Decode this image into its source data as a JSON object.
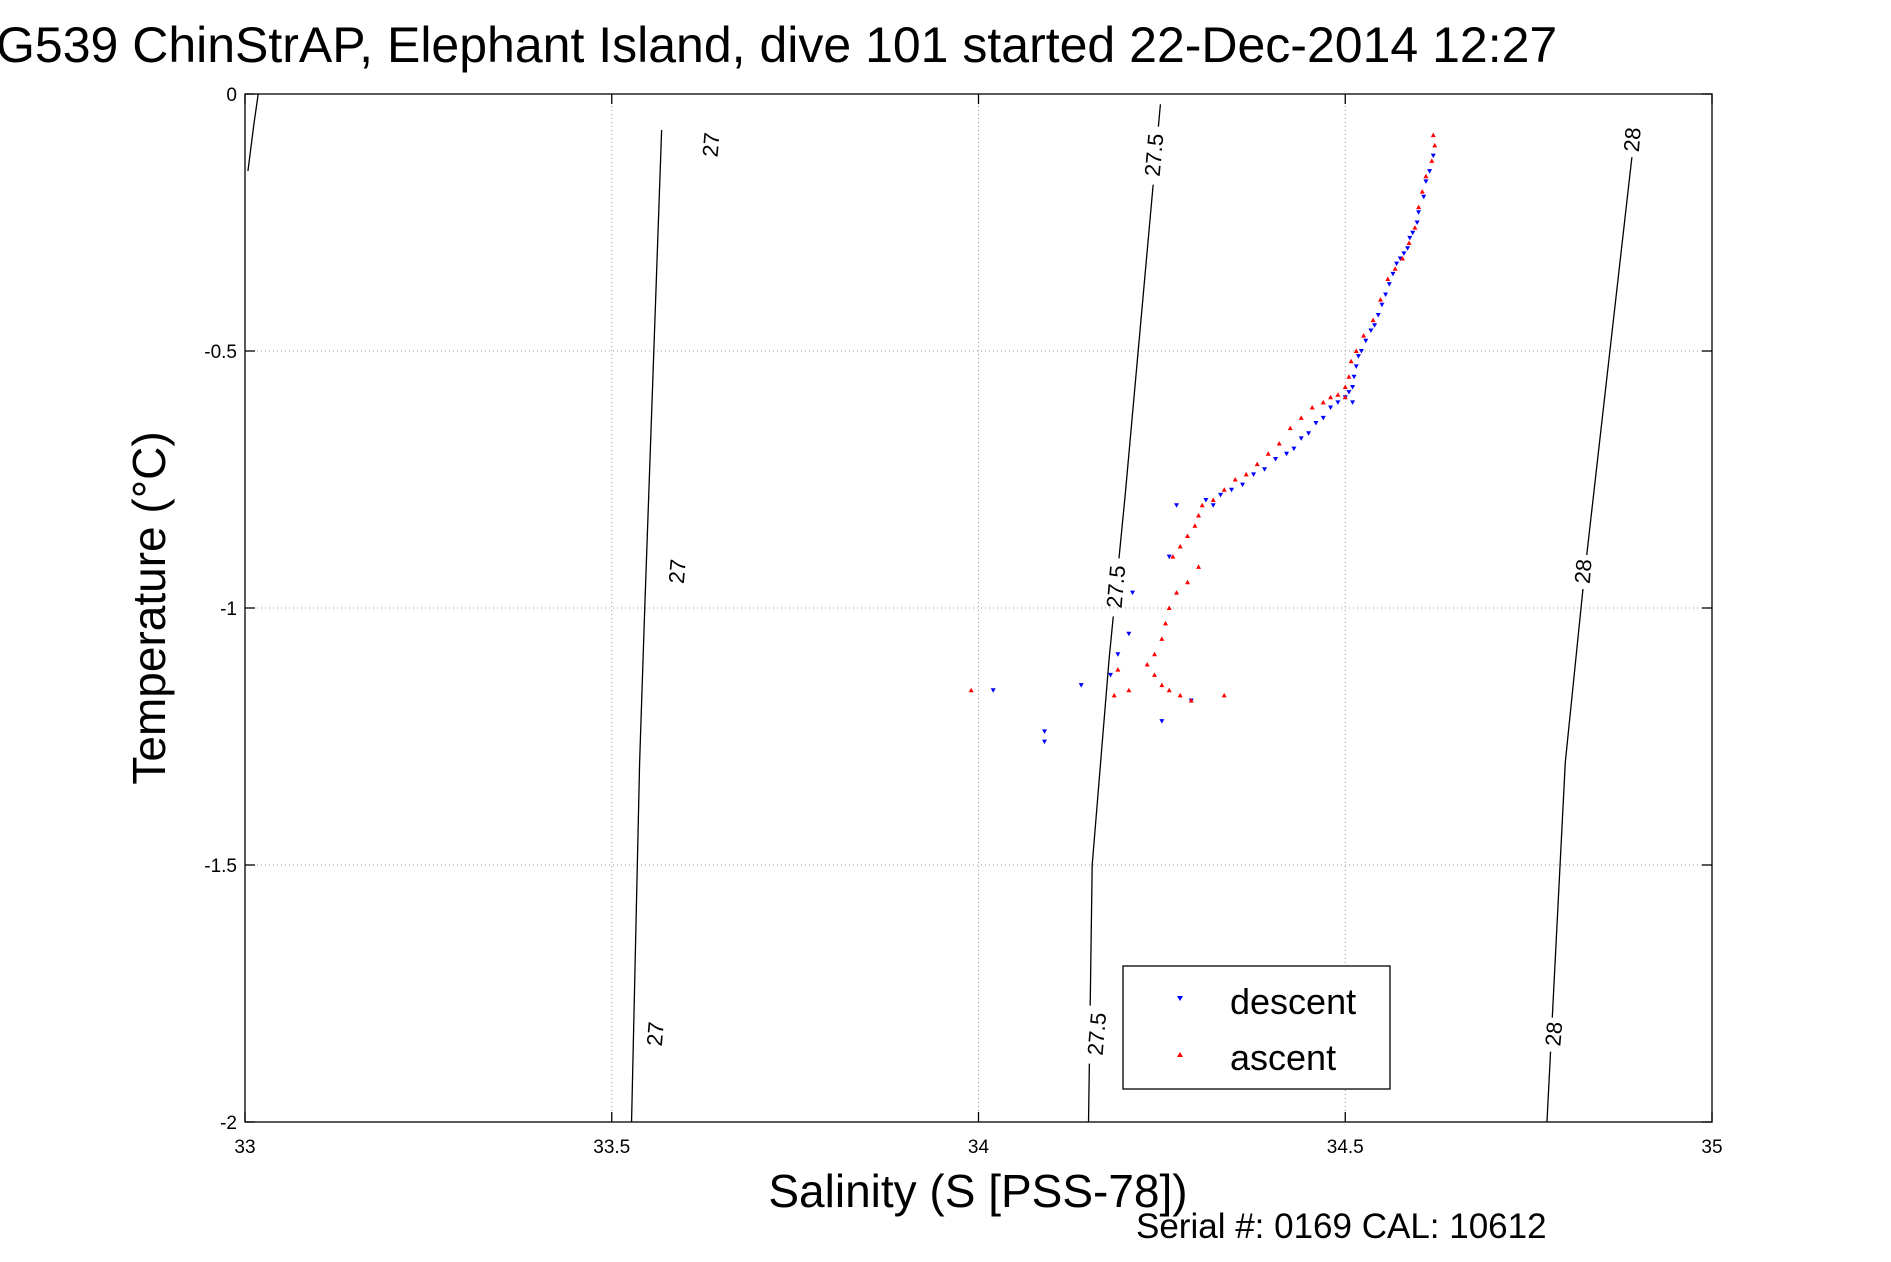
{
  "title": "G539 ChinStrAP, Elephant Island, dive 101 started 22-Dec-2014 12:27",
  "serial_note": "Serial #: 0169 CAL: 10612",
  "colors": {
    "descent": "#0000ff",
    "ascent": "#ff0000",
    "axes": "#000000",
    "grid": "#9a9a9a"
  },
  "chart_data": {
    "type": "scatter",
    "xlabel": "Salinity (S [PSS-78])",
    "ylabel": "Temperature (°C)",
    "xlim": [
      33,
      35
    ],
    "ylim": [
      -2,
      0
    ],
    "xticks": [
      33,
      33.5,
      34,
      34.5,
      35
    ],
    "xtick_labels": [
      "33",
      "33.5",
      "34",
      "34.5",
      "35"
    ],
    "yticks": [
      0,
      -0.5,
      -1,
      -1.5,
      -2
    ],
    "ytick_labels": [
      "0",
      "-0.5",
      "-1",
      "-1.5",
      "-2"
    ],
    "grid": true,
    "legend": {
      "position": "bottom-center",
      "entries": [
        "descent",
        "ascent"
      ]
    },
    "density_contours": [
      {
        "label": "27",
        "line": [
          [
            33.568,
            -0.07
          ],
          [
            33.545,
            -1.0
          ],
          [
            33.538,
            -1.3
          ],
          [
            33.527,
            -2.0
          ]
        ],
        "label_positions": [
          [
            33.636,
            -0.1
          ],
          [
            33.59,
            -0.93
          ],
          [
            33.56,
            -1.83
          ]
        ]
      },
      {
        "label": "27.5",
        "line": [
          [
            34.248,
            -0.02
          ],
          [
            34.2,
            -0.78
          ],
          [
            34.178,
            -1.1
          ],
          [
            34.155,
            -1.5
          ],
          [
            34.15,
            -2.0
          ]
        ],
        "label_positions": [
          [
            34.24,
            -0.12
          ],
          [
            34.188,
            -0.96
          ],
          [
            34.162,
            -1.83
          ]
        ]
      },
      {
        "label": "28",
        "line": [
          [
            34.895,
            -0.07
          ],
          [
            34.825,
            -0.95
          ],
          [
            34.8,
            -1.3
          ],
          [
            34.775,
            -2.0
          ]
        ],
        "label_positions": [
          [
            34.892,
            -0.09
          ],
          [
            34.825,
            -0.93
          ],
          [
            34.785,
            -1.83
          ]
        ]
      },
      {
        "label": "",
        "line": [
          [
            33.018,
            0.0
          ],
          [
            33.012,
            -0.06
          ],
          [
            33.004,
            -0.15
          ]
        ],
        "label_positions": []
      }
    ],
    "series": [
      {
        "name": "descent",
        "marker": "triangle-down",
        "points": [
          [
            34.62,
            -0.12
          ],
          [
            34.615,
            -0.15
          ],
          [
            34.61,
            -0.17
          ],
          [
            34.607,
            -0.2
          ],
          [
            34.6,
            -0.23
          ],
          [
            34.598,
            -0.25
          ],
          [
            34.592,
            -0.27
          ],
          [
            34.588,
            -0.28
          ],
          [
            34.585,
            -0.3
          ],
          [
            34.58,
            -0.31
          ],
          [
            34.575,
            -0.32
          ],
          [
            34.57,
            -0.33
          ],
          [
            34.565,
            -0.35
          ],
          [
            34.56,
            -0.37
          ],
          [
            34.555,
            -0.39
          ],
          [
            34.55,
            -0.41
          ],
          [
            34.545,
            -0.43
          ],
          [
            34.54,
            -0.45
          ],
          [
            34.535,
            -0.46
          ],
          [
            34.528,
            -0.48
          ],
          [
            34.522,
            -0.5
          ],
          [
            34.518,
            -0.51
          ],
          [
            34.515,
            -0.53
          ],
          [
            34.512,
            -0.55
          ],
          [
            34.51,
            -0.57
          ],
          [
            34.505,
            -0.58
          ],
          [
            34.51,
            -0.6
          ],
          [
            34.5,
            -0.59
          ],
          [
            34.49,
            -0.6
          ],
          [
            34.48,
            -0.61
          ],
          [
            34.47,
            -0.63
          ],
          [
            34.46,
            -0.64
          ],
          [
            34.45,
            -0.66
          ],
          [
            34.44,
            -0.67
          ],
          [
            34.43,
            -0.69
          ],
          [
            34.42,
            -0.7
          ],
          [
            34.405,
            -0.71
          ],
          [
            34.39,
            -0.73
          ],
          [
            34.375,
            -0.74
          ],
          [
            34.36,
            -0.76
          ],
          [
            34.345,
            -0.77
          ],
          [
            34.33,
            -0.78
          ],
          [
            34.31,
            -0.79
          ],
          [
            34.32,
            -0.8
          ],
          [
            34.27,
            -0.8
          ],
          [
            34.26,
            -0.9
          ],
          [
            34.21,
            -0.97
          ],
          [
            34.205,
            -1.05
          ],
          [
            34.19,
            -1.09
          ],
          [
            34.18,
            -1.13
          ],
          [
            34.14,
            -1.15
          ],
          [
            34.02,
            -1.16
          ],
          [
            34.09,
            -1.24
          ],
          [
            34.09,
            -1.26
          ],
          [
            34.25,
            -1.22
          ],
          [
            34.29,
            -1.18
          ]
        ]
      },
      {
        "name": "ascent",
        "marker": "triangle-up",
        "points": [
          [
            34.62,
            -0.08
          ],
          [
            34.622,
            -0.1
          ],
          [
            34.618,
            -0.13
          ],
          [
            34.61,
            -0.16
          ],
          [
            34.605,
            -0.19
          ],
          [
            34.6,
            -0.22
          ],
          [
            34.595,
            -0.26
          ],
          [
            34.587,
            -0.29
          ],
          [
            34.578,
            -0.32
          ],
          [
            34.568,
            -0.34
          ],
          [
            34.558,
            -0.36
          ],
          [
            34.548,
            -0.4
          ],
          [
            34.538,
            -0.44
          ],
          [
            34.525,
            -0.47
          ],
          [
            34.515,
            -0.5
          ],
          [
            34.508,
            -0.52
          ],
          [
            34.505,
            -0.55
          ],
          [
            34.5,
            -0.57
          ],
          [
            34.5,
            -0.59
          ],
          [
            34.49,
            -0.585
          ],
          [
            34.48,
            -0.59
          ],
          [
            34.47,
            -0.6
          ],
          [
            34.455,
            -0.61
          ],
          [
            34.44,
            -0.63
          ],
          [
            34.425,
            -0.65
          ],
          [
            34.41,
            -0.68
          ],
          [
            34.395,
            -0.7
          ],
          [
            34.38,
            -0.72
          ],
          [
            34.365,
            -0.74
          ],
          [
            34.35,
            -0.75
          ],
          [
            34.335,
            -0.77
          ],
          [
            34.32,
            -0.79
          ],
          [
            34.305,
            -0.8
          ],
          [
            34.3,
            -0.82
          ],
          [
            34.295,
            -0.84
          ],
          [
            34.285,
            -0.86
          ],
          [
            34.275,
            -0.88
          ],
          [
            34.265,
            -0.9
          ],
          [
            34.3,
            -0.92
          ],
          [
            34.285,
            -0.95
          ],
          [
            34.27,
            -0.97
          ],
          [
            34.26,
            -1.0
          ],
          [
            34.255,
            -1.03
          ],
          [
            34.25,
            -1.06
          ],
          [
            34.24,
            -1.09
          ],
          [
            34.23,
            -1.11
          ],
          [
            34.24,
            -1.13
          ],
          [
            34.25,
            -1.15
          ],
          [
            34.26,
            -1.16
          ],
          [
            34.275,
            -1.17
          ],
          [
            34.29,
            -1.18
          ],
          [
            34.335,
            -1.17
          ],
          [
            34.205,
            -1.16
          ],
          [
            34.19,
            -1.12
          ],
          [
            34.185,
            -1.17
          ],
          [
            33.99,
            -1.16
          ]
        ]
      }
    ]
  }
}
